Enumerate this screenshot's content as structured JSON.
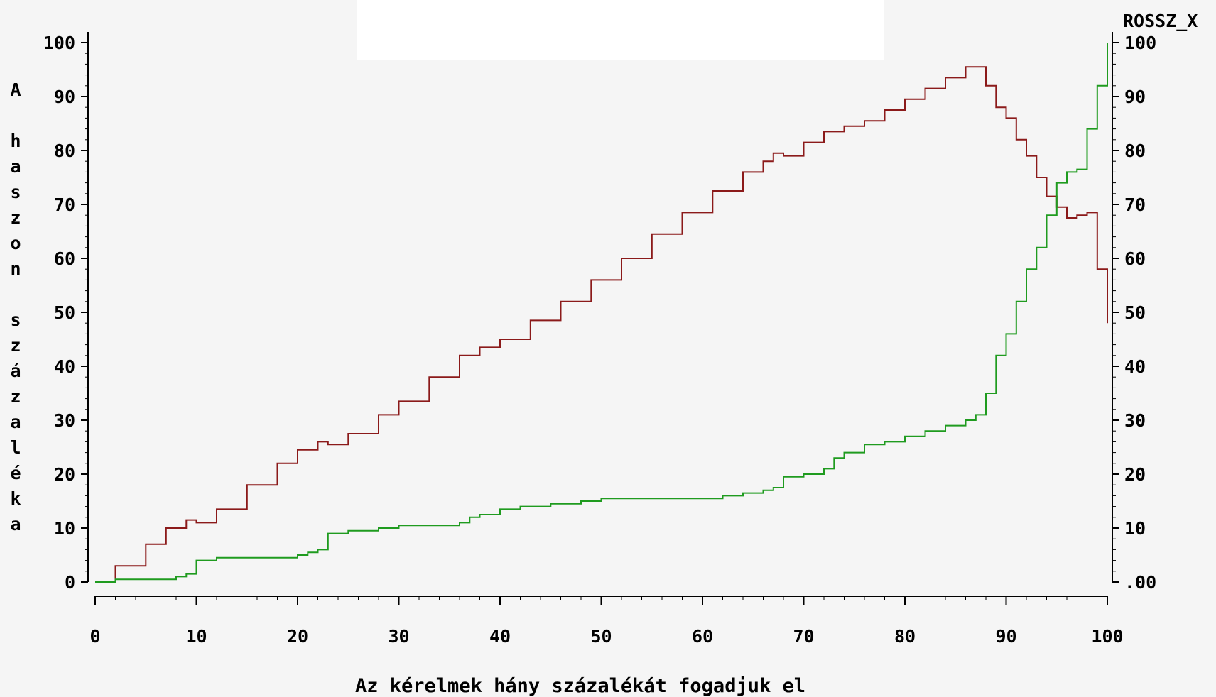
{
  "chart_data": {
    "type": "line",
    "title": "",
    "xlabel": "Az kérelmek hány százalékát fogadjuk el",
    "ylabel": "A haszon százaléka",
    "ylabel_right": "ROSSZ_X",
    "xlim": [
      0,
      100
    ],
    "ylim": [
      0,
      100
    ],
    "x_ticks": [
      "0",
      "10",
      "20",
      "30",
      "40",
      "50",
      "60",
      "70",
      "80",
      "90",
      "100"
    ],
    "y_ticks_left": [
      "0",
      "10",
      "20",
      "30",
      "40",
      "50",
      "60",
      "70",
      "80",
      "90",
      "100"
    ],
    "y_ticks_right": [
      ".00",
      "10",
      "20",
      "30",
      "40",
      "50",
      "60",
      "70",
      "80",
      "90",
      "100"
    ],
    "grid": false,
    "legend": "none",
    "series": [
      {
        "color": "#8b1a1a",
        "x": [
          0,
          2,
          5,
          7,
          9,
          10,
          12,
          15,
          18,
          20,
          22,
          23,
          25,
          28,
          30,
          33,
          36,
          38,
          40,
          43,
          46,
          49,
          52,
          55,
          58,
          61,
          64,
          66,
          67,
          68,
          70,
          72,
          74,
          76,
          78,
          80,
          82,
          84,
          86,
          87,
          88,
          89,
          90,
          91,
          92,
          93,
          94,
          95,
          96,
          97,
          98,
          99,
          100
        ],
        "y": [
          0,
          3,
          7,
          10,
          11.5,
          11,
          13.5,
          18,
          22,
          24.5,
          26,
          25.5,
          27.5,
          31,
          33.5,
          38,
          42,
          43.5,
          45,
          48.5,
          52,
          56,
          60,
          64.5,
          68.5,
          72.5,
          76,
          78,
          79.5,
          79,
          81.5,
          83.5,
          84.5,
          85.5,
          87.5,
          89.5,
          91.5,
          93.5,
          95.5,
          95.5,
          92,
          88,
          86,
          82,
          79,
          75,
          71.5,
          69.5,
          67.5,
          68,
          68.5,
          58,
          48
        ]
      },
      {
        "color": "#1f9b1f",
        "x": [
          0,
          1,
          2,
          3,
          4,
          5,
          6,
          7,
          8,
          9,
          10,
          12,
          15,
          18,
          20,
          21,
          22,
          23,
          25,
          28,
          30,
          33,
          35,
          36,
          37,
          38,
          40,
          42,
          45,
          48,
          50,
          55,
          60,
          62,
          64,
          66,
          67,
          68,
          70,
          72,
          73,
          74,
          76,
          78,
          80,
          82,
          84,
          86,
          87,
          88,
          89,
          90,
          91,
          92,
          93,
          94,
          95,
          96,
          97,
          98,
          99,
          100
        ],
        "y": [
          0,
          0,
          0.5,
          0.5,
          0.5,
          0.5,
          0.5,
          0.5,
          1,
          1.5,
          4,
          4.5,
          4.5,
          4.5,
          5,
          5.5,
          6,
          9,
          9.5,
          10,
          10.5,
          10.5,
          10.5,
          11,
          12,
          12.5,
          13.5,
          14,
          14.5,
          15,
          15.5,
          15.5,
          15.5,
          16,
          16.5,
          17,
          17.5,
          19.5,
          20,
          21,
          23,
          24,
          25.5,
          26,
          27,
          28,
          29,
          30,
          31,
          35,
          42,
          46,
          52,
          58,
          62,
          68,
          74,
          76,
          76.5,
          84,
          92,
          100
        ]
      }
    ]
  }
}
